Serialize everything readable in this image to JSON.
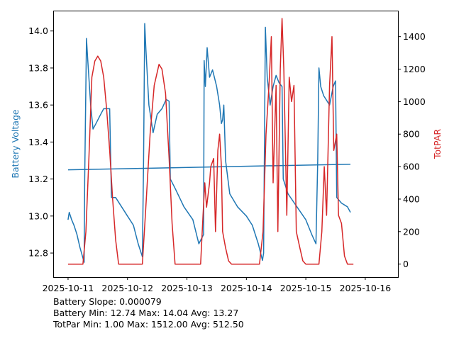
{
  "chart_data": {
    "type": "line",
    "x_origin": "2025-10-11",
    "x_unit": "days since x_origin",
    "xlim": [
      -0.25,
      5.55
    ],
    "x_ticks": [
      "2025-10-11",
      "2025-10-12",
      "2025-10-13",
      "2025-10-14",
      "2025-10-15",
      "2025-10-16"
    ],
    "y_left": {
      "label": "Battery Voltage",
      "color": "#1f77b4",
      "lim": [
        12.67,
        14.11
      ],
      "ticks": [
        "12.8",
        "13.0",
        "13.2",
        "13.4",
        "13.6",
        "13.8",
        "14.0"
      ]
    },
    "y_right": {
      "label": "TotPAR",
      "color": "#d62728",
      "lim": [
        -80,
        1560
      ],
      "ticks": [
        "0",
        "200",
        "400",
        "600",
        "800",
        "1000",
        "1200",
        "1400"
      ]
    },
    "series": [
      {
        "name": "Battery Voltage",
        "axis": "left",
        "color": "#1f77b4",
        "points": [
          [
            0,
            12.98
          ],
          [
            0.02,
            13.02
          ],
          [
            0.06,
            12.98
          ],
          [
            0.1,
            12.95
          ],
          [
            0.15,
            12.9
          ],
          [
            0.2,
            12.83
          ],
          [
            0.27,
            12.75
          ],
          [
            0.28,
            13.2
          ],
          [
            0.31,
            13.96
          ],
          [
            0.33,
            13.85
          ],
          [
            0.38,
            13.6
          ],
          [
            0.42,
            13.47
          ],
          [
            0.47,
            13.5
          ],
          [
            0.55,
            13.55
          ],
          [
            0.6,
            13.58
          ],
          [
            0.7,
            13.58
          ],
          [
            0.73,
            13.1
          ],
          [
            0.8,
            13.1
          ],
          [
            0.9,
            13.05
          ],
          [
            1.0,
            13.0
          ],
          [
            1.1,
            12.95
          ],
          [
            1.18,
            12.85
          ],
          [
            1.25,
            12.78
          ],
          [
            1.27,
            13.3
          ],
          [
            1.29,
            14.04
          ],
          [
            1.31,
            13.9
          ],
          [
            1.36,
            13.6
          ],
          [
            1.43,
            13.45
          ],
          [
            1.5,
            13.55
          ],
          [
            1.58,
            13.58
          ],
          [
            1.65,
            13.63
          ],
          [
            1.7,
            13.62
          ],
          [
            1.72,
            13.2
          ],
          [
            1.8,
            13.15
          ],
          [
            1.95,
            13.05
          ],
          [
            2.1,
            12.98
          ],
          [
            2.2,
            12.85
          ],
          [
            2.28,
            12.9
          ],
          [
            2.29,
            13.84
          ],
          [
            2.31,
            13.7
          ],
          [
            2.34,
            13.91
          ],
          [
            2.38,
            13.75
          ],
          [
            2.43,
            13.79
          ],
          [
            2.5,
            13.7
          ],
          [
            2.55,
            13.6
          ],
          [
            2.58,
            13.5
          ],
          [
            2.6,
            13.52
          ],
          [
            2.62,
            13.6
          ],
          [
            2.65,
            13.3
          ],
          [
            2.72,
            13.12
          ],
          [
            2.85,
            13.05
          ],
          [
            3.0,
            13.0
          ],
          [
            3.1,
            12.95
          ],
          [
            3.2,
            12.85
          ],
          [
            3.27,
            12.76
          ],
          [
            3.29,
            12.8
          ],
          [
            3.32,
            14.02
          ],
          [
            3.35,
            13.75
          ],
          [
            3.4,
            13.6
          ],
          [
            3.45,
            13.7
          ],
          [
            3.5,
            13.76
          ],
          [
            3.55,
            13.72
          ],
          [
            3.6,
            13.7
          ],
          [
            3.62,
            13.2
          ],
          [
            3.7,
            13.12
          ],
          [
            3.85,
            13.05
          ],
          [
            4.0,
            12.98
          ],
          [
            4.1,
            12.9
          ],
          [
            4.17,
            12.85
          ],
          [
            4.2,
            13.3
          ],
          [
            4.22,
            13.8
          ],
          [
            4.25,
            13.7
          ],
          [
            4.3,
            13.65
          ],
          [
            4.4,
            13.6
          ],
          [
            4.46,
            13.7
          ],
          [
            4.5,
            13.73
          ],
          [
            4.52,
            13.1
          ],
          [
            4.6,
            13.07
          ],
          [
            4.7,
            13.05
          ],
          [
            4.75,
            13.02
          ]
        ]
      },
      {
        "name": "Battery Trend",
        "axis": "left",
        "color": "#1f77b4",
        "points": [
          [
            0,
            13.25
          ],
          [
            4.75,
            13.28
          ]
        ]
      },
      {
        "name": "TotPAR",
        "axis": "right",
        "color": "#d62728",
        "points": [
          [
            0,
            0
          ],
          [
            0.25,
            0
          ],
          [
            0.3,
            200
          ],
          [
            0.35,
            650
          ],
          [
            0.37,
            850
          ],
          [
            0.4,
            1150
          ],
          [
            0.45,
            1250
          ],
          [
            0.5,
            1280
          ],
          [
            0.55,
            1250
          ],
          [
            0.6,
            1150
          ],
          [
            0.65,
            950
          ],
          [
            0.7,
            700
          ],
          [
            0.75,
            400
          ],
          [
            0.8,
            150
          ],
          [
            0.85,
            0
          ],
          [
            1.25,
            0
          ],
          [
            1.3,
            300
          ],
          [
            1.38,
            800
          ],
          [
            1.45,
            1100
          ],
          [
            1.53,
            1230
          ],
          [
            1.58,
            1200
          ],
          [
            1.64,
            1050
          ],
          [
            1.7,
            650
          ],
          [
            1.75,
            250
          ],
          [
            1.8,
            0
          ],
          [
            2.23,
            0
          ],
          [
            2.27,
            300
          ],
          [
            2.3,
            500
          ],
          [
            2.33,
            350
          ],
          [
            2.38,
            500
          ],
          [
            2.4,
            600
          ],
          [
            2.45,
            650
          ],
          [
            2.48,
            200
          ],
          [
            2.52,
            700
          ],
          [
            2.55,
            800
          ],
          [
            2.58,
            600
          ],
          [
            2.6,
            200
          ],
          [
            2.65,
            100
          ],
          [
            2.7,
            20
          ],
          [
            2.75,
            0
          ],
          [
            3.22,
            0
          ],
          [
            3.28,
            200
          ],
          [
            3.33,
            800
          ],
          [
            3.38,
            1100
          ],
          [
            3.42,
            1400
          ],
          [
            3.45,
            500
          ],
          [
            3.5,
            1100
          ],
          [
            3.53,
            200
          ],
          [
            3.57,
            1200
          ],
          [
            3.6,
            1512
          ],
          [
            3.63,
            1200
          ],
          [
            3.68,
            300
          ],
          [
            3.72,
            1150
          ],
          [
            3.76,
            1000
          ],
          [
            3.8,
            1100
          ],
          [
            3.84,
            200
          ],
          [
            3.9,
            100
          ],
          [
            3.95,
            20
          ],
          [
            4.0,
            0
          ],
          [
            4.22,
            0
          ],
          [
            4.27,
            200
          ],
          [
            4.31,
            600
          ],
          [
            4.35,
            300
          ],
          [
            4.4,
            1100
          ],
          [
            4.44,
            1400
          ],
          [
            4.47,
            700
          ],
          [
            4.52,
            800
          ],
          [
            4.55,
            300
          ],
          [
            4.6,
            250
          ],
          [
            4.65,
            50
          ],
          [
            4.7,
            0
          ],
          [
            4.8,
            0
          ]
        ]
      }
    ],
    "annotations": [
      "Battery Slope: 0.000079",
      "Battery Min: 12.74 Max: 14.04 Avg: 13.27",
      "TotPar Min: 1.00 Max: 1512.00 Avg: 512.50"
    ]
  }
}
